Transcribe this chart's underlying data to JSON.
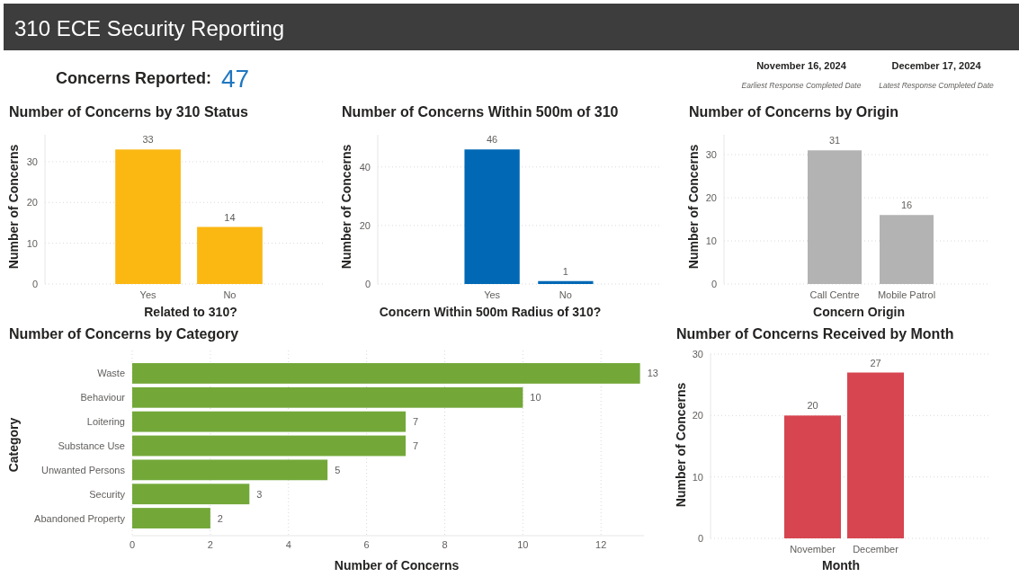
{
  "chart_data": [
    {
      "type": "other",
      "title": "310 ECE Security Reporting",
      "annotations": [
        "Concerns Reported:",
        "47",
        "November 16, 2024",
        "Earliest Response Completed Date",
        "December 17, 2024",
        "Latest Response Completed Date"
      ]
    },
    {
      "type": "bar",
      "title": "Number of Concerns by 310 Status",
      "xlabel": "Related to 310?",
      "ylabel": "Number of Concerns",
      "categories": [
        "Yes",
        "No"
      ],
      "values": [
        33,
        14
      ],
      "color": "#fbb813",
      "ylim": [
        0,
        36.6
      ],
      "yticks": [
        0,
        10,
        20,
        30
      ],
      "grid": "y",
      "data_labels": true
    },
    {
      "type": "bar",
      "title": "Number of Concerns Within 500m of 310",
      "xlabel": "Concern Within 500m Radius of 310?",
      "ylabel": "Number of Concerns",
      "categories": [
        "Yes",
        "No"
      ],
      "values": [
        46,
        1
      ],
      "color": "#0068b5",
      "ylim": [
        0,
        51
      ],
      "yticks": [
        0,
        20,
        40
      ],
      "grid": "y",
      "data_labels": true
    },
    {
      "type": "bar",
      "title": "Number of Concerns by Origin",
      "xlabel": "Concern Origin",
      "ylabel": "Number of Concerns",
      "categories": [
        "Call Centre",
        "Mobile Patrol"
      ],
      "values": [
        31,
        16
      ],
      "color": "#b3b3b3",
      "ylim": [
        0,
        34.6
      ],
      "yticks": [
        0,
        10,
        20,
        30
      ],
      "grid": "y",
      "data_labels": true
    },
    {
      "type": "bar",
      "orientation": "horizontal",
      "title": "Number of Concerns by Category",
      "xlabel": "Number of Concerns",
      "ylabel": "Category",
      "categories": [
        "Waste",
        "Behaviour",
        "Loitering",
        "Substance Use",
        "Unwanted Persons",
        "Security",
        "Abandoned Property"
      ],
      "values": [
        13,
        10,
        7,
        7,
        5,
        3,
        2
      ],
      "color": "#73a839",
      "xlim": [
        0,
        13.1
      ],
      "xticks": [
        0,
        2,
        4,
        6,
        8,
        10,
        12
      ],
      "grid": "x",
      "data_labels": true
    },
    {
      "type": "bar",
      "title": "Number of Concerns Received by Month",
      "xlabel": "Month",
      "ylabel": "Number of Concerns",
      "categories": [
        "November",
        "December"
      ],
      "values": [
        20,
        27
      ],
      "color": "#d64550",
      "ylim": [
        0,
        30
      ],
      "yticks": [
        0,
        10,
        20,
        30
      ],
      "grid": "y",
      "data_labels": true
    }
  ]
}
